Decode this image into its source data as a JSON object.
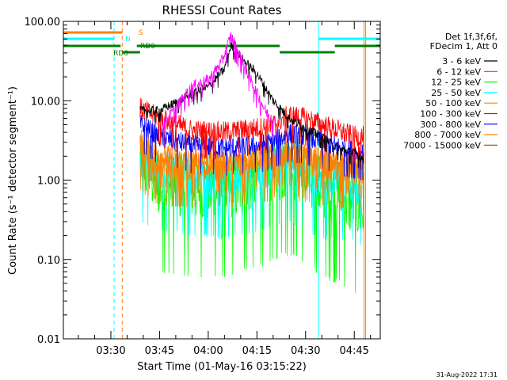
{
  "chart_data": {
    "type": "line",
    "title": "RHESSI Count Rates",
    "xlabel": "Start Time (01-May-16 03:15:22)",
    "ylabel": "Count Rate (s⁻¹ detector segment⁻¹)",
    "yscale": "log",
    "ylim": [
      0.01,
      100
    ],
    "xlim": [
      "03:15:22",
      "04:53:00"
    ],
    "x_ticks": [
      "03:30",
      "03:45",
      "04:00",
      "04:15",
      "04:30",
      "04:45"
    ],
    "y_ticks": [
      "0.01",
      "0.10",
      "1.00",
      "10.00",
      "100.00"
    ],
    "grid": false,
    "legend_position": "right",
    "legend_header": [
      "Det 1f,3f,6f,",
      "FDecim 1, Att 0"
    ],
    "series": [
      {
        "name": "3 - 6 keV",
        "color": "#000000",
        "x": [
          "03:39",
          "03:45",
          "03:55",
          "04:00",
          "04:05",
          "04:07",
          "04:10",
          "04:15",
          "04:20",
          "04:25",
          "04:30",
          "04:35",
          "04:40",
          "04:45",
          "04:48"
        ],
        "y": [
          null,
          7.5,
          12,
          15,
          25,
          50,
          35,
          22,
          10,
          6,
          4.5,
          3.5,
          2.5,
          2.2,
          1.8
        ]
      },
      {
        "name": "6 - 12 keV",
        "color": "#ff00ff",
        "x": [
          "03:46",
          "03:50",
          "03:55",
          "04:00",
          "04:04",
          "04:07",
          "04:10",
          "04:14",
          "04:18",
          "04:21"
        ],
        "y": [
          5,
          8,
          15,
          18,
          30,
          65,
          35,
          15,
          7,
          5
        ]
      },
      {
        "name": "12 - 25 keV",
        "color": "#00ff00",
        "x": [
          "03:39",
          "03:45",
          "03:55",
          "04:05",
          "04:15",
          "04:25",
          "04:35",
          "04:45",
          "04:48"
        ],
        "y": [
          1.6,
          0.9,
          0.8,
          0.75,
          1.0,
          1.5,
          0.8,
          0.5,
          0.4
        ]
      },
      {
        "name": "25 - 50 keV",
        "color": "#00ffff",
        "x": [
          "03:39",
          "03:45",
          "03:55",
          "04:05",
          "04:15",
          "04:25",
          "04:35",
          "04:45",
          "04:48"
        ],
        "y": [
          1.7,
          1.2,
          1.1,
          1.0,
          1.2,
          1.6,
          1.0,
          0.9,
          0.8
        ]
      },
      {
        "name": "50 - 100 keV",
        "color": "#ff8000",
        "x": [
          "03:39",
          "03:45",
          "03:55",
          "04:05",
          "04:15",
          "04:25",
          "04:35",
          "04:45",
          "04:48"
        ],
        "y": [
          2.3,
          1.5,
          1.4,
          1.4,
          1.6,
          2.0,
          1.5,
          1.3,
          1.3
        ]
      },
      {
        "name": "100 - 300 keV",
        "color": "#ff0000",
        "x": [
          "03:39",
          "03:45",
          "03:55",
          "04:05",
          "04:15",
          "04:20",
          "04:25",
          "04:30",
          "04:35",
          "04:40",
          "04:45",
          "04:48"
        ],
        "y": [
          8,
          6,
          4.2,
          4.0,
          4.5,
          5,
          6.5,
          6,
          5,
          4.2,
          3.5,
          3.5
        ]
      },
      {
        "name": "300 - 800 keV",
        "color": "#0000ff",
        "x": [
          "03:39",
          "03:45",
          "03:55",
          "04:05",
          "04:15",
          "04:20",
          "04:25",
          "04:30",
          "04:35",
          "04:40",
          "04:45",
          "04:48"
        ],
        "y": [
          5,
          3.5,
          2.7,
          2.5,
          2.7,
          3,
          3.8,
          3.5,
          3,
          2.6,
          2.3,
          2.2
        ]
      },
      {
        "name": "800 - 7000 keV",
        "color": "#ff8000",
        "x": [
          "03:39",
          "03:45",
          "03:55",
          "04:05",
          "04:15",
          "04:25",
          "04:35",
          "04:45",
          "04:48"
        ],
        "y": [
          2.8,
          2.0,
          1.7,
          1.7,
          1.9,
          2.2,
          1.8,
          1.6,
          1.5
        ]
      },
      {
        "name": "7000 - 15000 keV",
        "color": "#a05a2c",
        "x": [],
        "y": []
      }
    ],
    "state_bars": [
      {
        "label": "S",
        "color": "#ff8000",
        "segments": [
          [
            "03:15:22",
            "03:33:30"
          ]
        ]
      },
      {
        "label": "N",
        "color": "#00ffff",
        "segments": [
          [
            "03:15:22",
            "03:31:00"
          ],
          [
            "04:34:00",
            "04:53:00"
          ]
        ]
      },
      {
        "label": "RD0",
        "color": "#007f00",
        "segments": [
          [
            "03:15:22",
            "03:33:00"
          ],
          [
            "03:38:00",
            "04:22:00"
          ],
          [
            "04:39:00",
            "04:53:00"
          ]
        ]
      },
      {
        "label": "RD6",
        "color": "#007f00",
        "segments": [
          [
            "03:33:30",
            "03:39:00"
          ],
          [
            "04:22:00",
            "04:39:00"
          ]
        ]
      }
    ],
    "vlines": [
      {
        "x": "03:15:22",
        "color": "#00ffff",
        "style": "solid"
      },
      {
        "x": "03:31:00",
        "color": "#00ffff",
        "style": "dashed"
      },
      {
        "x": "03:33:30",
        "color": "#ff8000",
        "style": "dashed"
      },
      {
        "x": "04:34:00",
        "color": "#00ffff",
        "style": "solid"
      },
      {
        "x": "04:48:00",
        "color": "#ff8000",
        "style": "solid"
      },
      {
        "x": "04:48:30",
        "color": "#ff8000",
        "style": "solid"
      }
    ]
  },
  "footer": {
    "generated": "31-Aug-2022 17:31"
  }
}
